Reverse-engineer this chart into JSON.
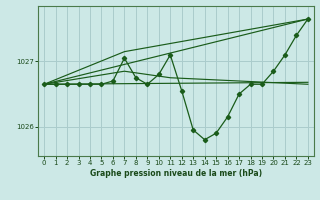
{
  "bg_color": "#cce8e6",
  "grid_color": "#aacccc",
  "line_color": "#1a5c1a",
  "title": "Graphe pression niveau de la mer (hPa)",
  "xlim": [
    -0.5,
    23.5
  ],
  "ylim": [
    1025.55,
    1027.85
  ],
  "yticks": [
    1026,
    1027
  ],
  "xticks": [
    0,
    1,
    2,
    3,
    4,
    5,
    6,
    7,
    8,
    9,
    10,
    11,
    12,
    13,
    14,
    15,
    16,
    17,
    18,
    19,
    20,
    21,
    22,
    23
  ],
  "series": [
    {
      "x": [
        0,
        1,
        2,
        3,
        4,
        5,
        6,
        7,
        8,
        9,
        10,
        11,
        12,
        13,
        14,
        15,
        16,
        17,
        18,
        19,
        20,
        21,
        22,
        23
      ],
      "y": [
        1026.65,
        1026.65,
        1026.65,
        1026.65,
        1026.65,
        1026.65,
        1026.7,
        1027.05,
        1026.75,
        1026.65,
        1026.8,
        1027.1,
        1026.55,
        1025.95,
        1025.8,
        1025.9,
        1026.15,
        1026.5,
        1026.65,
        1026.65,
        1026.85,
        1027.1,
        1027.4,
        1027.65
      ]
    },
    {
      "x": [
        0,
        7,
        23
      ],
      "y": [
        1026.65,
        1027.15,
        1027.65
      ]
    },
    {
      "x": [
        0,
        7,
        11,
        23
      ],
      "y": [
        1026.65,
        1026.85,
        1026.75,
        1026.65
      ]
    },
    {
      "x": [
        0,
        23
      ],
      "y": [
        1026.65,
        1027.65
      ]
    },
    {
      "x": [
        0,
        23
      ],
      "y": [
        1026.65,
        1026.68
      ]
    }
  ]
}
